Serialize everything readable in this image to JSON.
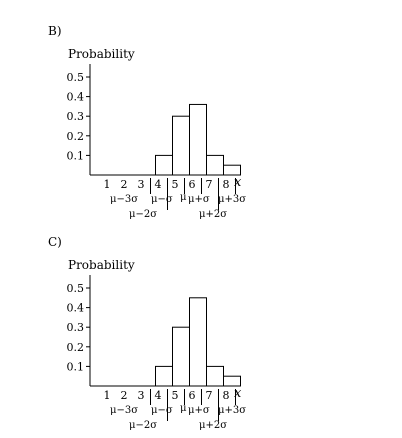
{
  "chart_data": [
    {
      "panel_label": "B)",
      "type": "bar",
      "ylabel": "Probability",
      "xlabel": "x",
      "ylim": [
        0,
        0.55
      ],
      "yticks": [
        "0.5",
        "0.4",
        "0.3",
        "0.2",
        "0.1"
      ],
      "categories": [
        "1",
        "2",
        "3",
        "4",
        "5",
        "6",
        "7",
        "8"
      ],
      "values": [
        0,
        0,
        0,
        0.1,
        0.3,
        0.36,
        0.1,
        0.05
      ],
      "annotations": {
        "mu_label": "μ",
        "row1": [
          "μ−3σ",
          "μ−σ",
          "μ+σ",
          "μ+3σ"
        ],
        "row2": [
          "μ−2σ",
          "μ+2σ"
        ]
      }
    },
    {
      "panel_label": "C)",
      "type": "bar",
      "ylabel": "Probability",
      "xlabel": "x",
      "ylim": [
        0,
        0.55
      ],
      "yticks": [
        "0.5",
        "0.4",
        "0.3",
        "0.2",
        "0.1"
      ],
      "categories": [
        "1",
        "2",
        "3",
        "4",
        "5",
        "6",
        "7",
        "8"
      ],
      "values": [
        0,
        0,
        0,
        0.1,
        0.3,
        0.45,
        0.1,
        0.05
      ],
      "annotations": {
        "mu_label": "μ",
        "row1": [
          "μ−3σ",
          "μ−σ",
          "μ+σ",
          "μ+3σ"
        ],
        "row2": [
          "μ−2σ",
          "μ+2σ"
        ]
      }
    }
  ]
}
